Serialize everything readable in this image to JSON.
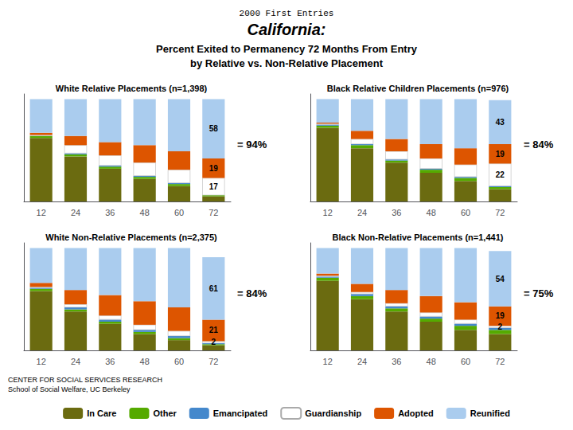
{
  "title": [
    "2000 First Entries",
    "California:",
    "Percent Exited to Permanency 72 Months From Entry",
    "by Relative vs. Non-Relative Placement"
  ],
  "annotations": [
    "CENTER FOR SOCIAL SERVICES RESEARCH",
    "School of Social Welfare, UC Berkeley"
  ],
  "legend": "bottom",
  "chart_data": [
    {
      "type": "bar",
      "title": "White Relative Placements (n=1,398)",
      "annotations": [
        "= 94%"
      ],
      "categories": [
        "12",
        "24",
        "36",
        "48",
        "60",
        "72"
      ],
      "stacked": true,
      "ylim": [
        0,
        105
      ],
      "yticks": [],
      "tick_labels": "x",
      "grid": false,
      "series": [
        {
          "name": "In Care",
          "color": "#6b6b10",
          "values": [
            62,
            44,
            32,
            22,
            15,
            5
          ]
        },
        {
          "name": "Other",
          "color": "#55aa00",
          "values": [
            2,
            2,
            2,
            2,
            2,
            1
          ]
        },
        {
          "name": "Emancipated",
          "color": "#4488cc",
          "values": [
            0,
            1,
            1,
            1,
            1,
            0
          ]
        },
        {
          "name": "Guardianship",
          "color": "#ffffff",
          "values": [
            1,
            8,
            10,
            13,
            13,
            17
          ],
          "value_labels": [
            null,
            null,
            null,
            null,
            null,
            "17"
          ]
        },
        {
          "name": "Adopted",
          "color": "#dd5500",
          "values": [
            2,
            9,
            13,
            17,
            18,
            19
          ],
          "value_labels": [
            null,
            null,
            null,
            null,
            null,
            "19"
          ]
        },
        {
          "name": "Reunified",
          "color": "#aaccee",
          "values": [
            33,
            36,
            42,
            45,
            51,
            58
          ],
          "value_labels": [
            null,
            null,
            null,
            null,
            null,
            "58"
          ]
        }
      ]
    },
    {
      "type": "bar",
      "title": "Black Relative Children Placements (n=976)",
      "annotations": [
        "= 84%"
      ],
      "categories": [
        "12",
        "24",
        "36",
        "48",
        "60",
        "72"
      ],
      "stacked": true,
      "ylim": [
        0,
        105
      ],
      "yticks": [],
      "tick_labels": "x",
      "grid": false,
      "series": [
        {
          "name": "In Care",
          "color": "#6b6b10",
          "values": [
            72,
            52,
            38,
            28,
            20,
            12
          ]
        },
        {
          "name": "Other",
          "color": "#55aa00",
          "values": [
            2,
            3,
            2,
            3,
            3,
            2
          ]
        },
        {
          "name": "Emancipated",
          "color": "#4488cc",
          "values": [
            1,
            1,
            1,
            1,
            1,
            1
          ]
        },
        {
          "name": "Guardianship",
          "color": "#ffffff",
          "values": [
            1,
            5,
            8,
            10,
            12,
            22
          ],
          "value_labels": [
            null,
            null,
            null,
            null,
            null,
            "22"
          ]
        },
        {
          "name": "Adopted",
          "color": "#dd5500",
          "values": [
            1,
            8,
            12,
            14,
            16,
            19
          ],
          "value_labels": [
            null,
            null,
            null,
            null,
            null,
            "19"
          ]
        },
        {
          "name": "Reunified",
          "color": "#aaccee",
          "values": [
            23,
            31,
            39,
            44,
            48,
            43
          ],
          "value_labels": [
            null,
            null,
            null,
            null,
            null,
            "43"
          ]
        }
      ]
    },
    {
      "type": "bar",
      "title": "White Non-Relative Placements (n=2,375)",
      "annotations": [
        "= 84%"
      ],
      "categories": [
        "12",
        "24",
        "36",
        "48",
        "60",
        "72"
      ],
      "stacked": true,
      "ylim": [
        0,
        105
      ],
      "yticks": [],
      "tick_labels": "x",
      "grid": false,
      "series": [
        {
          "name": "In Care",
          "color": "#6b6b10",
          "values": [
            58,
            38,
            26,
            16,
            10,
            5
          ]
        },
        {
          "name": "Other",
          "color": "#55aa00",
          "values": [
            2,
            2,
            2,
            2,
            2,
            1
          ]
        },
        {
          "name": "Emancipated",
          "color": "#4488cc",
          "values": [
            1,
            2,
            2,
            2,
            2,
            1
          ]
        },
        {
          "name": "Guardianship",
          "color": "#ffffff",
          "values": [
            1,
            3,
            4,
            5,
            5,
            2
          ],
          "value_labels": [
            null,
            null,
            null,
            null,
            null,
            "2"
          ]
        },
        {
          "name": "Adopted",
          "color": "#dd5500",
          "values": [
            4,
            14,
            20,
            23,
            23,
            21
          ],
          "value_labels": [
            null,
            null,
            null,
            null,
            null,
            "21"
          ]
        },
        {
          "name": "Reunified",
          "color": "#aaccee",
          "values": [
            34,
            41,
            46,
            52,
            58,
            61
          ],
          "value_labels": [
            null,
            null,
            null,
            null,
            null,
            "61"
          ]
        }
      ]
    },
    {
      "type": "bar",
      "title": "Black Non-Relative Placements (n=1,441)",
      "annotations": [
        "= 75%"
      ],
      "categories": [
        "12",
        "24",
        "36",
        "48",
        "60",
        "72"
      ],
      "stacked": true,
      "ylim": [
        0,
        105
      ],
      "yticks": [],
      "tick_labels": "x",
      "grid": false,
      "series": [
        {
          "name": "In Care",
          "color": "#6b6b10",
          "values": [
            68,
            50,
            38,
            28,
            20,
            16
          ]
        },
        {
          "name": "Other",
          "color": "#55aa00",
          "values": [
            3,
            3,
            3,
            3,
            4,
            4
          ]
        },
        {
          "name": "Emancipated",
          "color": "#4488cc",
          "values": [
            1,
            2,
            2,
            2,
            2,
            2
          ]
        },
        {
          "name": "Guardianship",
          "color": "#ffffff",
          "values": [
            1,
            2,
            3,
            4,
            4,
            2
          ],
          "value_labels": [
            null,
            null,
            null,
            null,
            null,
            "2"
          ]
        },
        {
          "name": "Adopted",
          "color": "#dd5500",
          "values": [
            2,
            8,
            13,
            16,
            17,
            19
          ],
          "value_labels": [
            null,
            null,
            null,
            null,
            null,
            "19"
          ]
        },
        {
          "name": "Reunified",
          "color": "#aaccee",
          "values": [
            25,
            35,
            41,
            47,
            53,
            54
          ],
          "value_labels": [
            null,
            null,
            null,
            null,
            null,
            "54"
          ]
        }
      ]
    }
  ]
}
